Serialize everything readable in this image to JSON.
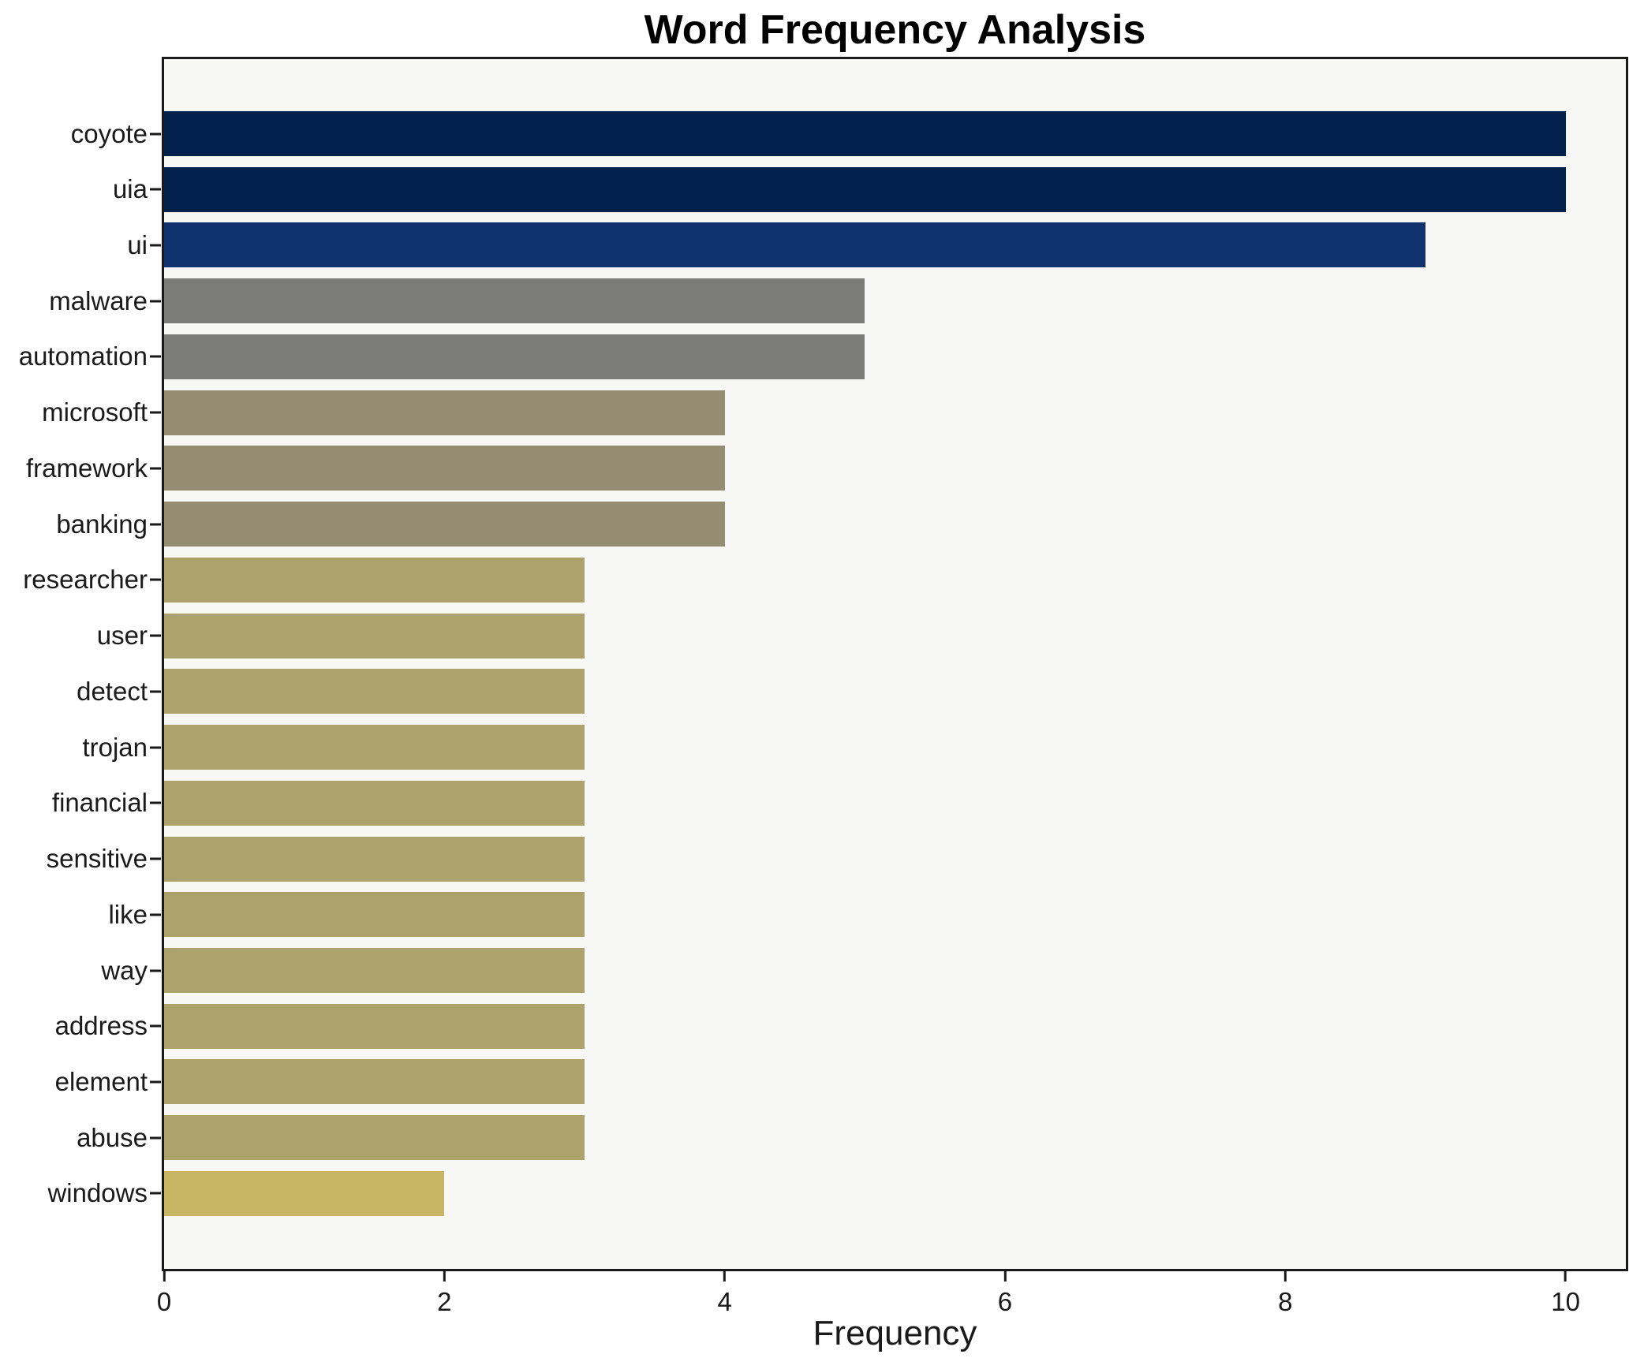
{
  "chart_data": {
    "type": "bar",
    "orientation": "horizontal",
    "title": "Word Frequency Analysis",
    "xlabel": "Frequency",
    "ylabel": "",
    "categories": [
      "coyote",
      "uia",
      "ui",
      "malware",
      "automation",
      "microsoft",
      "framework",
      "banking",
      "researcher",
      "user",
      "detect",
      "trojan",
      "financial",
      "sensitive",
      "like",
      "way",
      "address",
      "element",
      "abuse",
      "windows"
    ],
    "values": [
      10,
      10,
      9,
      5,
      5,
      4,
      4,
      4,
      3,
      3,
      3,
      3,
      3,
      3,
      3,
      3,
      3,
      3,
      3,
      2
    ],
    "bar_colors": [
      "#02224d",
      "#02224d",
      "#10336f",
      "#7b7b78",
      "#7b7b78",
      "#948d72",
      "#948d72",
      "#948d72",
      "#ada26b",
      "#ada26b",
      "#ada26b",
      "#ada26b",
      "#ada26b",
      "#ada26b",
      "#ada26b",
      "#ada26b",
      "#ada26b",
      "#ada26b",
      "#ada26b",
      "#c9b664"
    ],
    "xlim": [
      0,
      10.43
    ],
    "xticks": [
      0,
      2,
      4,
      6,
      8,
      10
    ],
    "grid": false,
    "legend": "none",
    "plot_background": "#f7f7f6",
    "figure_background": "#ffffff",
    "axis_color": "#1a1a1a"
  }
}
